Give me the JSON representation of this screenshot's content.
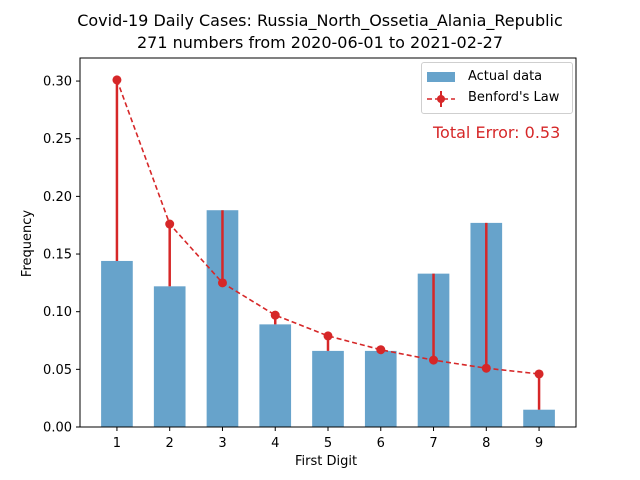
{
  "chart_data": {
    "type": "bar",
    "title": "Covid-19 Daily Cases: Russia_North_Ossetia_Alania_Republic",
    "subtitle": "271 numbers from 2020-06-01 to 2021-02-27",
    "xlabel": "First Digit",
    "ylabel": "Frequency",
    "categories": [
      "1",
      "2",
      "3",
      "4",
      "5",
      "6",
      "7",
      "8",
      "9"
    ],
    "ylim": [
      0,
      0.32
    ],
    "yticks": [
      "0.00",
      "0.05",
      "0.10",
      "0.15",
      "0.20",
      "0.25",
      "0.30"
    ],
    "series": [
      {
        "name": "Actual data",
        "type": "bar",
        "values": [
          0.144,
          0.122,
          0.188,
          0.089,
          0.066,
          0.066,
          0.133,
          0.177,
          0.015
        ],
        "color": "#5f9ec8"
      },
      {
        "name": "Benford's Law",
        "type": "line",
        "values": [
          0.301,
          0.176,
          0.125,
          0.097,
          0.079,
          0.067,
          0.058,
          0.051,
          0.046
        ],
        "color": "#d62728"
      }
    ],
    "legend_position": "top-right",
    "grid": false,
    "annotation": "Total Error: 0.53",
    "annotation_color": "#d62728"
  }
}
